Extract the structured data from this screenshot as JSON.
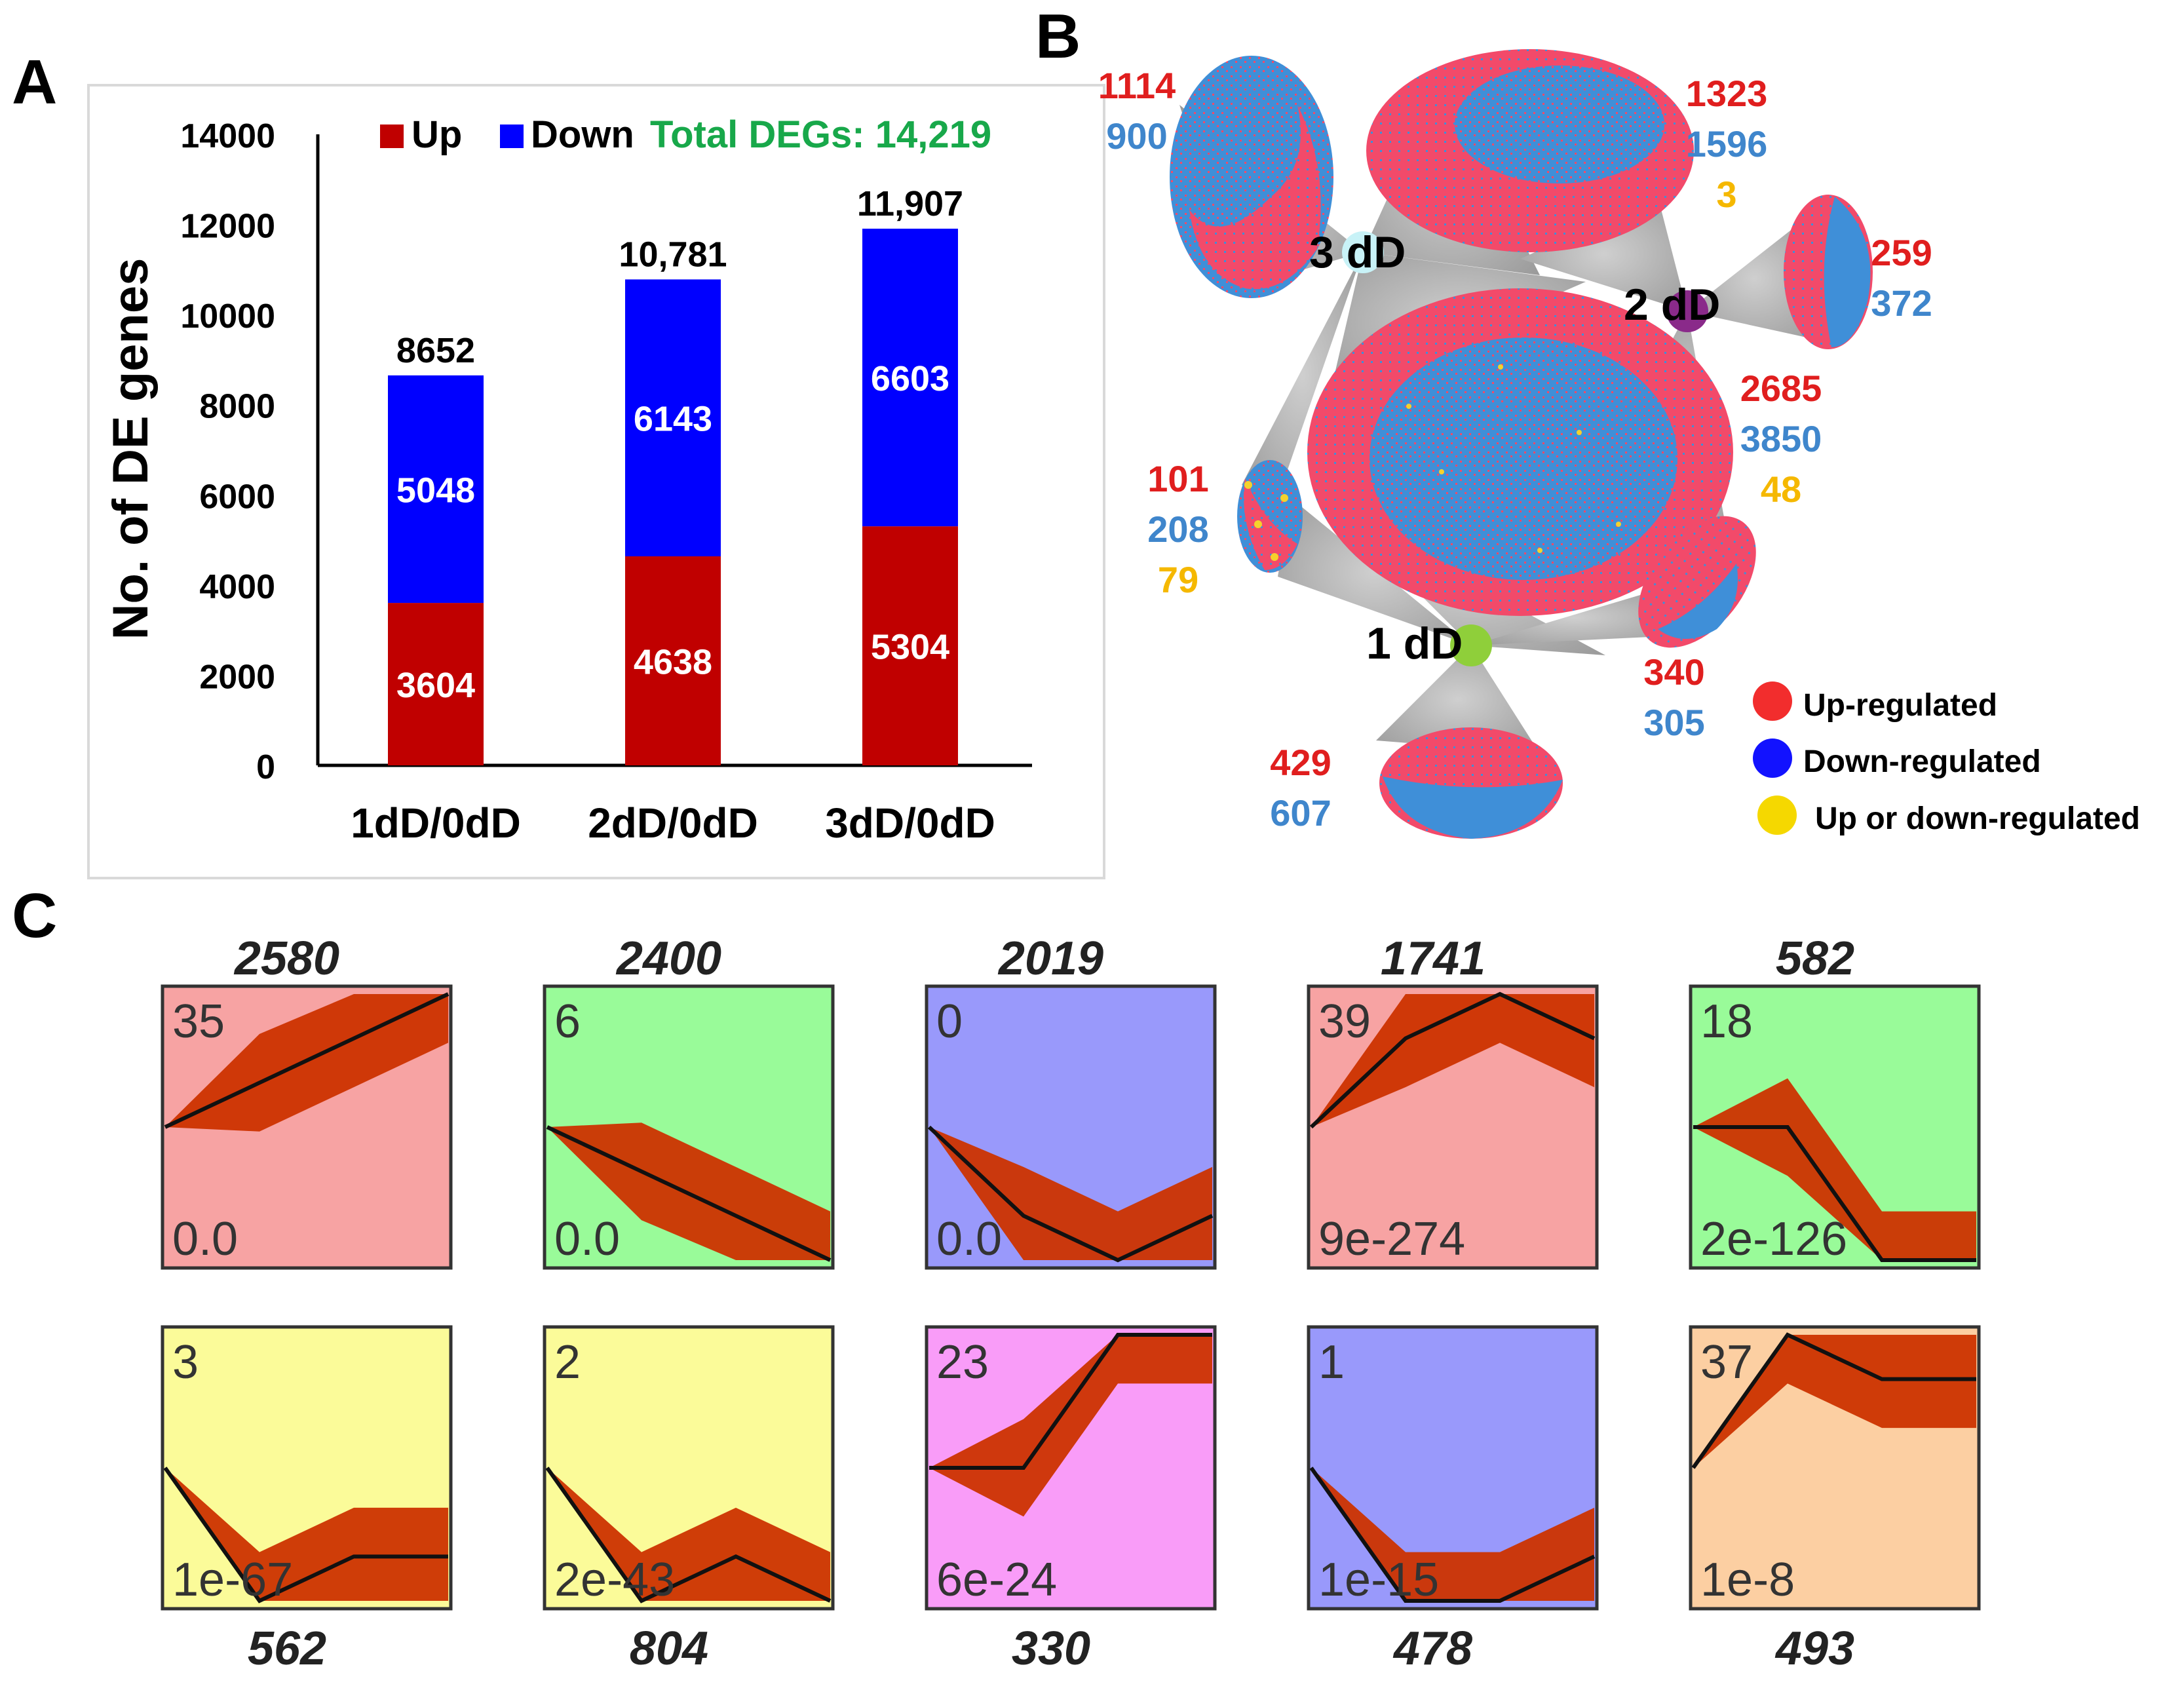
{
  "panels": {
    "a": "A",
    "b": "B",
    "c": "C"
  },
  "colors": {
    "up": "#c00000",
    "down": "#0000ff",
    "total": "#18a84a",
    "net_red": "#f24a6a",
    "net_blue": "#3f8fd8",
    "net_yellow": "#f5d22c",
    "label_red": "#e01e1e",
    "label_blue": "#3f86cc",
    "label_yellow": "#f5b800",
    "profile_line": "#cc3300",
    "bg_red": "#f7a3a3",
    "bg_green": "#99fb99",
    "bg_blue": "#9999fb",
    "bg_yellow": "#fbfb99",
    "bg_magenta": "#f99cf8",
    "bg_orange": "#fccfa2"
  },
  "chart_data": [
    {
      "type": "bar",
      "stacked": true,
      "title": "",
      "ylabel": "No. of DE genes",
      "xlabel": "",
      "ylim": [
        0,
        14000
      ],
      "yticks": [
        "0",
        "2000",
        "4000",
        "6000",
        "8000",
        "10000",
        "12000",
        "14000"
      ],
      "categories": [
        "1dD/0dD",
        "2dD/0dD",
        "3dD/0dD"
      ],
      "series": [
        {
          "name": "Up",
          "values": [
            3604,
            4638,
            5304
          ],
          "labels": [
            "3604",
            "4638",
            "5304"
          ]
        },
        {
          "name": "Down",
          "values": [
            5048,
            6143,
            6603
          ],
          "labels": [
            "5048",
            "6143",
            "6603"
          ]
        }
      ],
      "totals": [
        "8652",
        "10,781",
        "11,907"
      ],
      "annotation": "Total DEGs: 14,219",
      "legend_position": "top"
    },
    {
      "type": "network",
      "nodes": [
        {
          "name": "3 dD",
          "color": "#c8f2f7"
        },
        {
          "name": "2 dD",
          "color": "#8a2a8a"
        },
        {
          "name": "1 dD",
          "color": "#8fcf3a"
        }
      ],
      "clusters": [
        {
          "connects": "3 dD",
          "counts": [
            {
              "v": "1114",
              "c": "red"
            },
            {
              "v": "900",
              "c": "blue"
            }
          ]
        },
        {
          "connects": "3 dD + 2 dD",
          "counts": [
            {
              "v": "1323",
              "c": "red"
            },
            {
              "v": "1596",
              "c": "blue"
            },
            {
              "v": "3",
              "c": "yellow"
            }
          ]
        },
        {
          "connects": "2 dD",
          "counts": [
            {
              "v": "259",
              "c": "red"
            },
            {
              "v": "372",
              "c": "blue"
            }
          ]
        },
        {
          "connects": "1 dD + 2 dD + 3 dD",
          "counts": [
            {
              "v": "2685",
              "c": "red"
            },
            {
              "v": "3850",
              "c": "blue"
            },
            {
              "v": "48",
              "c": "yellow"
            }
          ]
        },
        {
          "connects": "1 dD + 3 dD",
          "counts": [
            {
              "v": "101",
              "c": "red"
            },
            {
              "v": "208",
              "c": "blue"
            },
            {
              "v": "79",
              "c": "yellow"
            }
          ]
        },
        {
          "connects": "1 dD + 2 dD",
          "counts": [
            {
              "v": "340",
              "c": "red"
            },
            {
              "v": "305",
              "c": "blue"
            }
          ]
        },
        {
          "connects": "1 dD",
          "counts": [
            {
              "v": "429",
              "c": "red"
            },
            {
              "v": "607",
              "c": "blue"
            }
          ]
        }
      ],
      "legend": [
        "Up-regulated",
        "Down-regulated",
        "Up or down-regulated"
      ]
    },
    {
      "type": "line",
      "subtype": "expression-profiles",
      "x": [
        0,
        1,
        2,
        3
      ],
      "profiles": [
        {
          "size": "2580",
          "id": "35",
          "p": "0.0",
          "bg": "red",
          "trend": [
            0,
            1,
            2,
            3
          ]
        },
        {
          "size": "2400",
          "id": "6",
          "p": "0.0",
          "bg": "green",
          "trend": [
            0,
            -1,
            -2,
            -3
          ]
        },
        {
          "size": "2019",
          "id": "0",
          "p": "0.0",
          "bg": "blue",
          "trend": [
            0,
            -2,
            -3,
            -2
          ]
        },
        {
          "size": "1741",
          "id": "39",
          "p": "9e-274",
          "bg": "red",
          "trend": [
            0,
            2,
            3,
            2
          ]
        },
        {
          "size": "582",
          "id": "18",
          "p": "2e-126",
          "bg": "green",
          "trend": [
            0,
            0,
            -3,
            -3
          ]
        },
        {
          "size": "562",
          "id": "3",
          "p": "1e-67",
          "bg": "yellow",
          "trend": [
            0,
            -3,
            -2,
            -2
          ]
        },
        {
          "size": "804",
          "id": "2",
          "p": "2e-43",
          "bg": "yellow",
          "trend": [
            0,
            -3,
            -2,
            -3
          ]
        },
        {
          "size": "330",
          "id": "23",
          "p": "6e-24",
          "bg": "magenta",
          "trend": [
            0,
            0,
            3,
            3
          ]
        },
        {
          "size": "478",
          "id": "1",
          "p": "1e-15",
          "bg": "blue",
          "trend": [
            0,
            -3,
            -3,
            -2
          ]
        },
        {
          "size": "493",
          "id": "37",
          "p": "1e-8",
          "bg": "orange",
          "trend": [
            0,
            3,
            2,
            2
          ]
        }
      ]
    }
  ]
}
